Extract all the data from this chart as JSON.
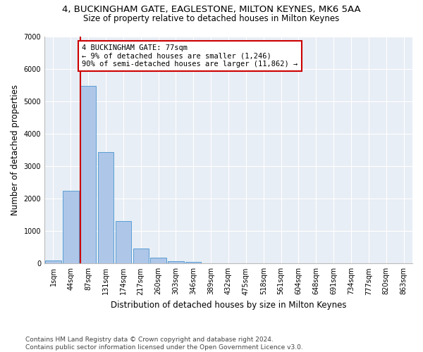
{
  "title1": "4, BUCKINGHAM GATE, EAGLESTONE, MILTON KEYNES, MK6 5AA",
  "title2": "Size of property relative to detached houses in Milton Keynes",
  "xlabel": "Distribution of detached houses by size in Milton Keynes",
  "ylabel": "Number of detached properties",
  "bar_labels": [
    "1sqm",
    "44sqm",
    "87sqm",
    "131sqm",
    "174sqm",
    "217sqm",
    "260sqm",
    "303sqm",
    "346sqm",
    "389sqm",
    "432sqm",
    "475sqm",
    "518sqm",
    "561sqm",
    "604sqm",
    "648sqm",
    "691sqm",
    "734sqm",
    "777sqm",
    "820sqm",
    "863sqm"
  ],
  "bar_values": [
    100,
    2250,
    5480,
    3430,
    1310,
    470,
    190,
    80,
    40,
    0,
    0,
    0,
    0,
    0,
    0,
    0,
    0,
    0,
    0,
    0,
    0
  ],
  "bar_color": "#aec6e8",
  "bar_edge_color": "#5a9fd4",
  "vline_color": "#cc0000",
  "annotation_line1": "4 BUCKINGHAM GATE: 77sqm",
  "annotation_line2": "← 9% of detached houses are smaller (1,246)",
  "annotation_line3": "90% of semi-detached houses are larger (11,862) →",
  "annotation_box_color": "#ffffff",
  "annotation_box_edge": "#cc0000",
  "ylim": [
    0,
    7000
  ],
  "yticks": [
    0,
    1000,
    2000,
    3000,
    4000,
    5000,
    6000,
    7000
  ],
  "bg_color": "#e8eef5",
  "footer": "Contains HM Land Registry data © Crown copyright and database right 2024.\nContains public sector information licensed under the Open Government Licence v3.0.",
  "title1_fontsize": 9.5,
  "title2_fontsize": 8.5,
  "xlabel_fontsize": 8.5,
  "ylabel_fontsize": 8.5,
  "tick_fontsize": 7,
  "footer_fontsize": 6.5,
  "annot_fontsize": 7.5
}
